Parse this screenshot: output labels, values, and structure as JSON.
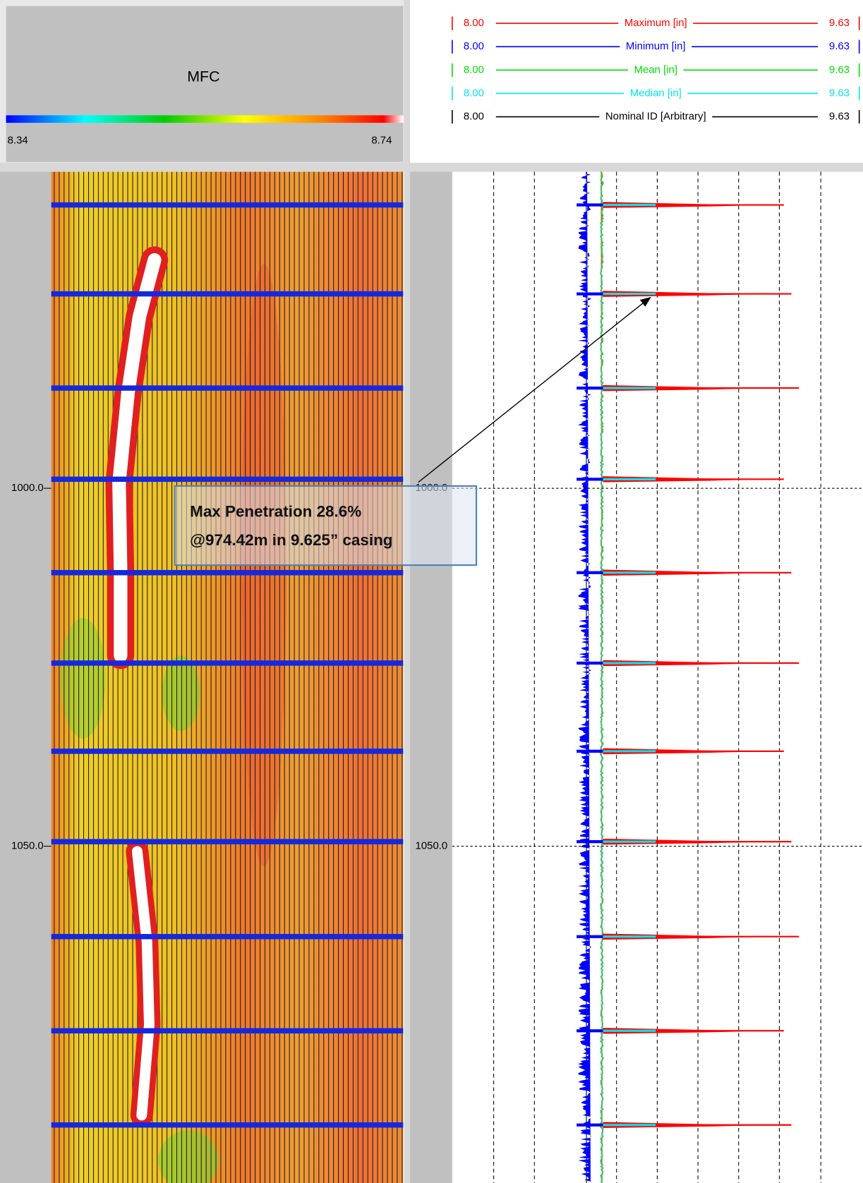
{
  "header": {
    "title": "MFC",
    "scale_min": "8.34",
    "scale_max": "8.74"
  },
  "legend": [
    {
      "left": "8.00",
      "name": "Maximum [in]",
      "right": "9.63",
      "color": "#ff0000"
    },
    {
      "left": "8.00",
      "name": "Minimum [in]",
      "right": "9.63",
      "color": "#0000ff"
    },
    {
      "left": "8.00",
      "name": "Mean [in]",
      "right": "9.63",
      "color": "#00dd00"
    },
    {
      "left": "8.00",
      "name": "Median [in]",
      "right": "9.63",
      "color": "#00e5ee"
    },
    {
      "left": "8.00",
      "name": "Nominal ID [Arbitrary]",
      "right": "9.63",
      "color": "#000000"
    }
  ],
  "depth_labels": [
    "1000.0",
    "1050.0"
  ],
  "annotation": {
    "lines": [
      "Max Penetration 28.6%",
      "@974.42m in 9.625” casing"
    ]
  }
}
